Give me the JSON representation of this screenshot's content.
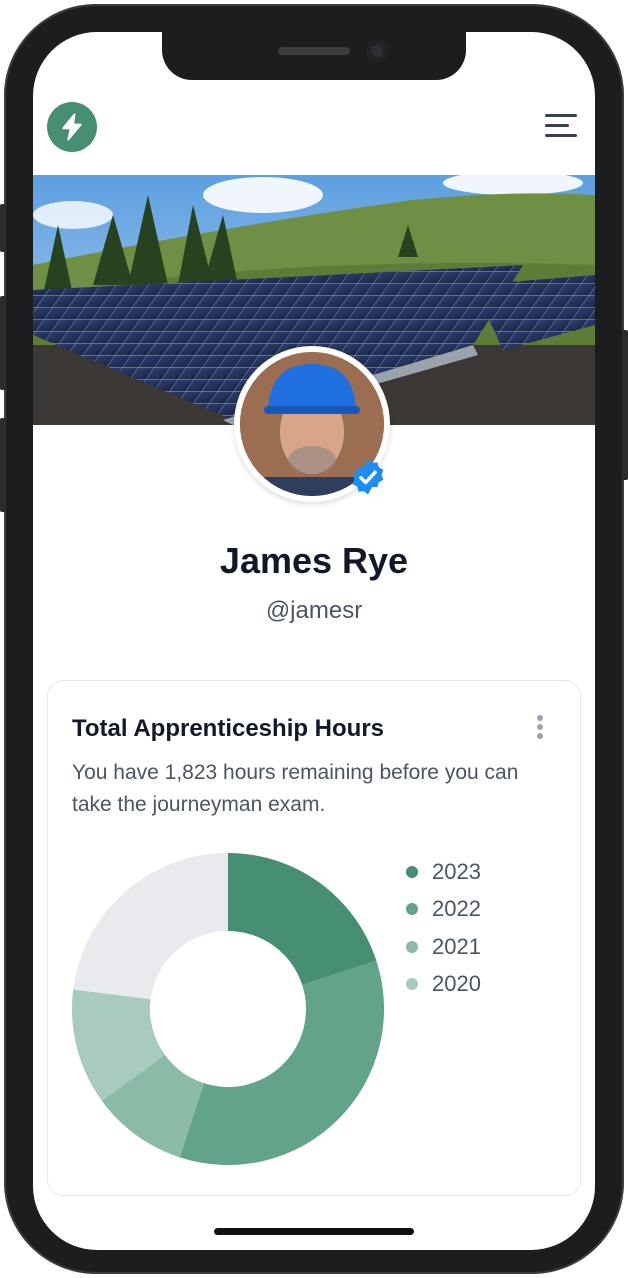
{
  "header": {
    "logo_icon": "lightning-bolt-icon",
    "menu_icon": "hamburger-menu-icon",
    "brand_color": "#468f72"
  },
  "profile": {
    "name": "James Rye",
    "handle": "@jamesr",
    "verified_icon": "verified-badge-icon"
  },
  "card": {
    "title": "Total Apprenticeship Hours",
    "description": "You have 1,823 hours remaining before you can take the journeyman exam.",
    "more_icon": "kebab-menu-icon"
  },
  "chart_data": {
    "type": "pie",
    "donut": true,
    "legend_position": "right",
    "series": [
      {
        "name": "2023",
        "value": 20,
        "color": "#468f72"
      },
      {
        "name": "2022",
        "value": 35,
        "color": "#62a38a"
      },
      {
        "name": "2021",
        "value": 10,
        "color": "#8bbaa7"
      },
      {
        "name": "2020",
        "value": 12,
        "color": "#a9cbbf"
      }
    ],
    "remaining": {
      "value": 23,
      "color": "#e9eaee"
    }
  }
}
